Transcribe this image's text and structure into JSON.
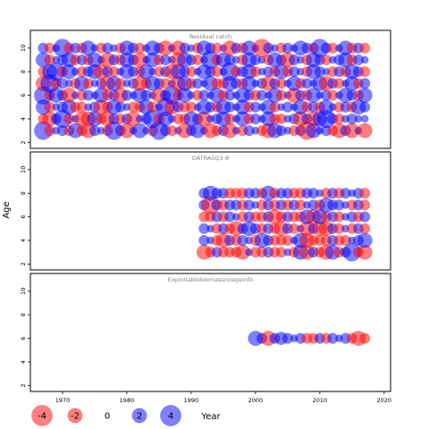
{
  "chart_data": [
    {
      "type": "scatter",
      "subtype": "bubble",
      "title": "Residual catch",
      "ylabel": "Age",
      "xlim": [
        1965,
        2021
      ],
      "ylim": [
        1.5,
        11.5
      ],
      "ages": [
        3,
        4,
        5,
        6,
        7,
        8,
        9,
        10
      ],
      "years_start": 1967,
      "years_end": 2017,
      "yticks": [
        2,
        4,
        6,
        8,
        10
      ],
      "residuals_by_age": {
        "3": [
          3,
          -1,
          0.5,
          1,
          -1,
          2,
          -1,
          -2,
          1,
          0.5,
          -1,
          3,
          1,
          -2,
          0.5,
          2,
          0.5,
          -1,
          3,
          1,
          -1,
          0.5,
          -2,
          1,
          2,
          0.5,
          -2,
          -1,
          1,
          -2,
          0.5,
          -1,
          1,
          0.5,
          -1,
          -2,
          2,
          1,
          0.5,
          -1,
          1,
          -3,
          2,
          0.5,
          1,
          -1,
          -2,
          1,
          -2,
          0.5,
          -2
        ],
        "4": [
          -1,
          -2,
          1,
          3,
          -1,
          0.5,
          -2,
          -2,
          2,
          -1,
          -2,
          1,
          -1,
          1,
          -2,
          0.5,
          1,
          3,
          -1,
          2,
          0.5,
          -1,
          -1,
          2,
          1,
          -2,
          0.5,
          1,
          2,
          -1,
          0.5,
          2,
          -1,
          1,
          0.5,
          2,
          -1,
          -1,
          0.5,
          1,
          -2,
          1,
          -2,
          2,
          3,
          1,
          -1,
          0.5,
          1,
          0.5,
          0.5
        ],
        "5": [
          2,
          -1,
          0.5,
          1,
          2,
          -1,
          -1,
          0.5,
          1,
          -2,
          -1,
          2,
          1,
          0.5,
          -1,
          -1,
          2,
          -1,
          0.5,
          3,
          -2,
          1,
          -1,
          -1,
          0.5,
          2,
          1,
          -1,
          2,
          1,
          0.5,
          2,
          -1,
          1,
          0.5,
          2,
          -1,
          0.5,
          1,
          0.5,
          2,
          -1,
          1,
          -1,
          2,
          0.5,
          -1,
          1,
          -1,
          2,
          1
        ],
        "6": [
          3,
          -1,
          2,
          1,
          -2,
          0.5,
          -1,
          1,
          0.5,
          2,
          -1,
          1,
          -2,
          1,
          0.5,
          2,
          1,
          0.5,
          -2,
          1,
          3,
          -1,
          2,
          0.5,
          -1,
          1,
          0.5,
          2,
          -1,
          1,
          0.5,
          2,
          1,
          -1,
          1,
          0.5,
          2,
          -1,
          0.5,
          -2,
          1,
          -1,
          2,
          0.5,
          1,
          -1,
          0.5,
          2,
          1,
          -1,
          2
        ],
        "7": [
          -2,
          3,
          -1,
          1,
          0.5,
          -1,
          2,
          -1,
          0.5,
          1,
          -2,
          2,
          -1,
          0.5,
          1,
          -2,
          -1,
          2,
          1,
          -1,
          0.5,
          -2,
          2,
          -1,
          1,
          0.5,
          2,
          -1,
          -1,
          2,
          1,
          -1,
          2,
          0.5,
          1,
          -2,
          1,
          -1,
          0.5,
          2,
          -1,
          1,
          0.5,
          2,
          -2,
          1,
          -1,
          0.5,
          2,
          -1,
          1
        ],
        "8": [
          -1,
          2,
          3,
          -1,
          2,
          0.5,
          -1,
          1,
          2,
          -2,
          1,
          -1,
          0.5,
          2,
          1,
          -1,
          2,
          0.5,
          -1,
          1,
          -2,
          2,
          1,
          -1,
          0.5,
          2,
          1,
          -1,
          0.5,
          3,
          -1,
          1,
          2,
          -1,
          0.5,
          1,
          -1,
          2,
          -1,
          1,
          0.5,
          -1,
          2,
          1,
          0.5,
          -1,
          1,
          -1,
          2,
          1,
          -1
        ],
        "9": [
          2,
          -1,
          0.5,
          1,
          2,
          -1,
          1,
          -1,
          2,
          0.5,
          -2,
          1,
          -1,
          2,
          1,
          -2,
          0.5,
          2,
          -1,
          1,
          0.5,
          -2,
          2,
          1,
          -1,
          0.5,
          3,
          -1,
          2,
          1,
          0.5,
          -1,
          2,
          1,
          0.5,
          -1,
          2,
          1,
          -2,
          1,
          0.5,
          -1,
          2,
          1,
          -1,
          0.5,
          1,
          2,
          -1,
          1,
          0.5
        ],
        "10": [
          1,
          -1,
          0.5,
          3,
          -1,
          1,
          -1,
          2,
          0.5,
          -1,
          1,
          0.5,
          -1,
          2,
          1,
          -1,
          0.5,
          2,
          1,
          -2,
          0.5,
          -2,
          1,
          0.5,
          -1,
          2,
          1,
          -1,
          0.5,
          -2,
          1,
          -1,
          2,
          0.5,
          -3,
          1,
          0.5,
          -1,
          1,
          0.5,
          2,
          1,
          -1,
          3,
          1,
          -1,
          0.5,
          2,
          -1,
          1,
          -1
        ]
      }
    },
    {
      "type": "scatter",
      "subtype": "bubble",
      "title": "DATRASQ3-8",
      "ylabel": "Age",
      "xlim": [
        1965,
        2021
      ],
      "ylim": [
        1.5,
        11.5
      ],
      "ages": [
        3,
        4,
        5,
        6,
        7,
        8
      ],
      "years_start": 1992,
      "years_end": 2017,
      "yticks": [
        2,
        4,
        6,
        8,
        10
      ],
      "residuals_by_age": {
        "3": [
          -2,
          -1,
          1,
          -1,
          -1,
          -1,
          -2,
          0.5,
          -1,
          -1,
          1,
          -1,
          -1,
          0.5,
          -1,
          2,
          -2,
          1,
          -1,
          -2,
          2,
          -1,
          1,
          3,
          -1,
          -2
        ],
        "4": [
          1,
          0.5,
          -1,
          -2,
          1,
          -1,
          1,
          0.5,
          -1,
          2,
          1,
          -1,
          -1,
          -1,
          0.5,
          2,
          -2,
          -1,
          -1,
          -1,
          1,
          -1,
          -1,
          0.5,
          1,
          2
        ],
        "5": [
          1,
          0.5,
          -1,
          1,
          -1,
          -2,
          1,
          2,
          1,
          -1,
          1,
          -1,
          -2,
          1,
          -1,
          0.5,
          -2,
          1,
          -2,
          -2,
          1,
          -1,
          0.5,
          -1,
          1,
          -1
        ],
        "6": [
          -1,
          -1,
          1,
          -1,
          1,
          0.5,
          -1,
          1,
          -1,
          -1,
          1,
          -2,
          -1,
          1,
          -1,
          -1,
          2,
          -2,
          2,
          -1,
          1,
          -1,
          0.5,
          1,
          -1,
          1
        ],
        "7": [
          1,
          -3,
          1,
          -1,
          1,
          1,
          -1,
          1,
          0.5,
          -1,
          1,
          -1,
          1,
          -1,
          1,
          -1,
          0.5,
          1,
          -1,
          2,
          1,
          1,
          0.5,
          -1,
          1,
          -1
        ],
        "8": [
          1,
          2,
          1,
          1,
          -1,
          -1,
          -1,
          1,
          1,
          -1,
          2,
          -1,
          1,
          1,
          -1,
          -1,
          1,
          1,
          0.5,
          -1,
          1,
          -1,
          1,
          0.5,
          1,
          -1
        ]
      }
    },
    {
      "type": "scatter",
      "subtype": "bubble",
      "title": "Exploitablebiomassnoageinfo",
      "ylabel": "Age",
      "xlabel": "Year",
      "xlim": [
        1965,
        2021
      ],
      "ylim": [
        1.5,
        11.5
      ],
      "xticks": [
        1970,
        1980,
        1990,
        2000,
        2010,
        2020
      ],
      "ages": [
        6
      ],
      "years_start": 2000,
      "years_end": 2017,
      "yticks": [
        2,
        4,
        6,
        8,
        10
      ],
      "residuals_by_age": {
        "6": [
          2,
          1,
          -2,
          1,
          1.5,
          1,
          0.5,
          1,
          -1,
          -1,
          1,
          -1,
          1,
          0.5,
          1,
          -1,
          -2,
          -1
        ]
      }
    }
  ],
  "legend": {
    "values": [
      -4,
      -2,
      0,
      2,
      4
    ],
    "labels": [
      "-4",
      "-2",
      "0",
      "2",
      "4"
    ],
    "xlabel": "Year"
  },
  "colors": {
    "positive": "#0000ff",
    "negative": "#ff0000",
    "bubble_alpha": 0.5,
    "panel_border": "#000000",
    "title_text": "#808080"
  },
  "ylabel": "Age"
}
